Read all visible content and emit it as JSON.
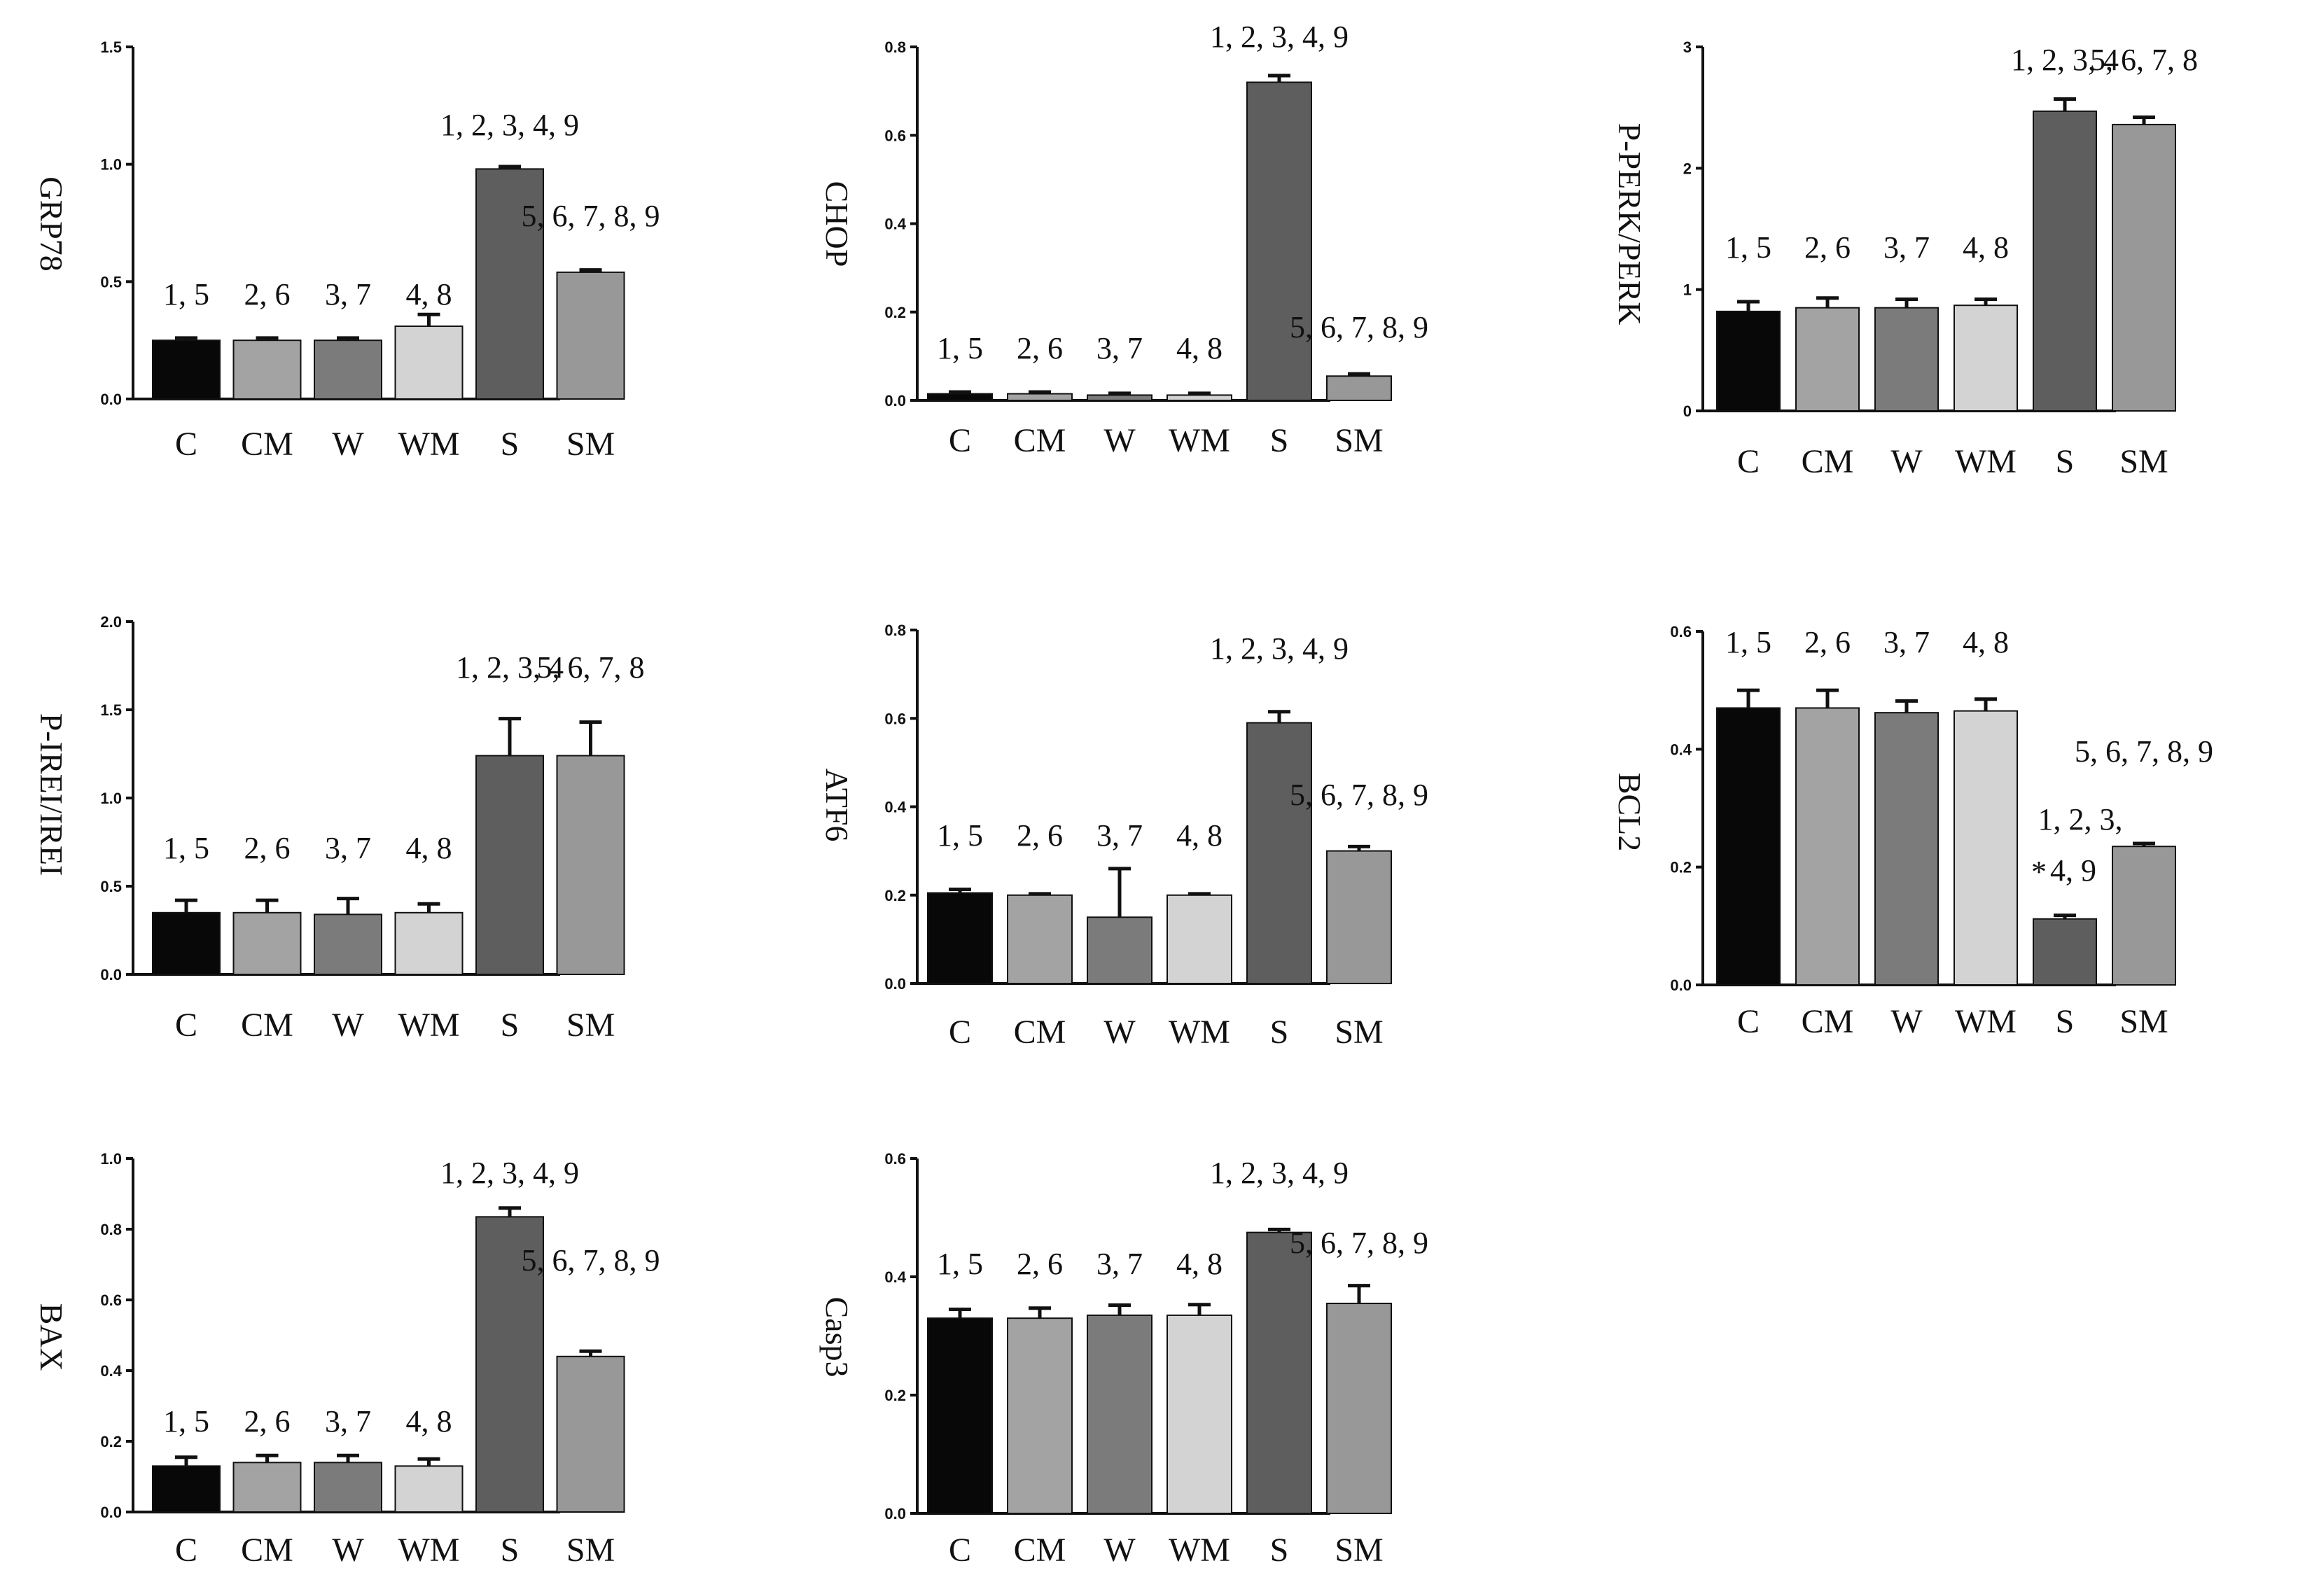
{
  "chart_data": [
    {
      "type": "bar",
      "ylabel": "GRP78",
      "categories": [
        "C",
        "CM",
        "W",
        "WM",
        "S",
        "SM"
      ],
      "values": [
        0.25,
        0.25,
        0.25,
        0.31,
        0.98,
        0.54
      ],
      "errors": [
        0.01,
        0.01,
        0.01,
        0.05,
        0.01,
        0.01
      ],
      "ylim": [
        0,
        1.5
      ],
      "yticks": [
        "0.0",
        "0.5",
        "1.0",
        "1.5"
      ],
      "annotations": [
        "1, 5",
        "2, 6",
        "3, 7",
        "4, 8",
        "1, 2, 3, 4, 9",
        "5, 6, 7, 8, 9"
      ]
    },
    {
      "type": "bar",
      "ylabel": "CHOP",
      "categories": [
        "C",
        "CM",
        "W",
        "WM",
        "S",
        "SM"
      ],
      "values": [
        0.015,
        0.015,
        0.012,
        0.012,
        0.72,
        0.055
      ],
      "errors": [
        0.004,
        0.004,
        0.004,
        0.004,
        0.015,
        0.005
      ],
      "ylim": [
        0,
        0.8
      ],
      "yticks": [
        "0.0",
        "0.2",
        "0.4",
        "0.6",
        "0.8"
      ],
      "annotations": [
        "1, 5",
        "2, 6",
        "3, 7",
        "4, 8",
        "1, 2, 3, 4, 9",
        "5, 6, 7, 8, 9"
      ]
    },
    {
      "type": "bar",
      "ylabel": "P-PERK/PERK",
      "categories": [
        "C",
        "CM",
        "W",
        "WM",
        "S",
        "SM"
      ],
      "values": [
        0.82,
        0.85,
        0.85,
        0.87,
        2.47,
        2.36
      ],
      "errors": [
        0.08,
        0.08,
        0.07,
        0.05,
        0.1,
        0.06
      ],
      "ylim": [
        0,
        3
      ],
      "yticks": [
        "0",
        "1",
        "2",
        "3"
      ],
      "annotations": [
        "1, 5",
        "2, 6",
        "3, 7",
        "4, 8",
        "1, 2, 3, 4",
        "5, 6, 7, 8"
      ]
    },
    {
      "type": "bar",
      "ylabel": "P-IREI/IREI",
      "categories": [
        "C",
        "CM",
        "W",
        "WM",
        "S",
        "SM"
      ],
      "values": [
        0.35,
        0.35,
        0.34,
        0.35,
        1.24,
        1.24
      ],
      "errors": [
        0.07,
        0.07,
        0.09,
        0.05,
        0.21,
        0.19
      ],
      "ylim": [
        0,
        2.0
      ],
      "yticks": [
        "0.0",
        "0.5",
        "1.0",
        "1.5",
        "2.0"
      ],
      "annotations": [
        "1, 5",
        "2, 6",
        "3, 7",
        "4, 8",
        "1, 2, 3, 4",
        "5, 6, 7, 8"
      ]
    },
    {
      "type": "bar",
      "ylabel": "ATF6",
      "categories": [
        "C",
        "CM",
        "W",
        "WM",
        "S",
        "SM"
      ],
      "values": [
        0.205,
        0.2,
        0.15,
        0.2,
        0.59,
        0.3
      ],
      "errors": [
        0.008,
        0.003,
        0.11,
        0.003,
        0.025,
        0.01
      ],
      "ylim": [
        0,
        0.8
      ],
      "yticks": [
        "0.0",
        "0.2",
        "0.4",
        "0.6",
        "0.8"
      ],
      "annotations": [
        "1, 5",
        "2, 6",
        "3, 7",
        "4, 8",
        "1, 2, 3, 4, 9",
        "5, 6, 7, 8, 9"
      ]
    },
    {
      "type": "bar",
      "ylabel": "BCL2",
      "categories": [
        "C",
        "CM",
        "W",
        "WM",
        "S",
        "SM"
      ],
      "values": [
        0.47,
        0.47,
        0.462,
        0.465,
        0.112,
        0.235
      ],
      "errors": [
        0.03,
        0.03,
        0.02,
        0.02,
        0.006,
        0.005
      ],
      "ylim": [
        0,
        0.6
      ],
      "yticks": [
        "0.0",
        "0.2",
        "0.4",
        "0.6"
      ],
      "annotations": [
        "1, 5",
        "2, 6",
        "3, 7",
        "4, 8",
        "",
        "5, 6, 7, 8, 9"
      ],
      "extra_annotations": [
        "1, 2, 3,",
        "4, 9",
        "*"
      ]
    },
    {
      "type": "bar",
      "ylabel": "BAX",
      "categories": [
        "C",
        "CM",
        "W",
        "WM",
        "S",
        "SM"
      ],
      "values": [
        0.13,
        0.14,
        0.14,
        0.13,
        0.835,
        0.44
      ],
      "errors": [
        0.025,
        0.02,
        0.02,
        0.02,
        0.025,
        0.015
      ],
      "ylim": [
        0,
        1.0
      ],
      "yticks": [
        "0.0",
        "0.2",
        "0.4",
        "0.6",
        "0.8",
        "1.0"
      ],
      "annotations": [
        "1, 5",
        "2, 6",
        "3, 7",
        "4, 8",
        "1, 2, 3, 4, 9",
        "5, 6, 7, 8, 9"
      ]
    },
    {
      "type": "bar",
      "ylabel": "Casp3",
      "categories": [
        "C",
        "CM",
        "W",
        "WM",
        "S",
        "SM"
      ],
      "values": [
        0.33,
        0.33,
        0.335,
        0.335,
        0.475,
        0.355
      ],
      "errors": [
        0.015,
        0.017,
        0.017,
        0.018,
        0.005,
        0.03
      ],
      "ylim": [
        0,
        0.6
      ],
      "yticks": [
        "0.0",
        "0.2",
        "0.4",
        "0.6"
      ],
      "annotations": [
        "1, 5",
        "2, 6",
        "3, 7",
        "4, 8",
        "1, 2, 3, 4, 9",
        "5, 6, 7, 8, 9"
      ]
    }
  ],
  "colors": {
    "bars": [
      "#080808",
      "#a3a3a3",
      "#7b7b7b",
      "#d3d3d3",
      "#5e5e5e",
      "#989898"
    ],
    "axis": "#111111"
  }
}
